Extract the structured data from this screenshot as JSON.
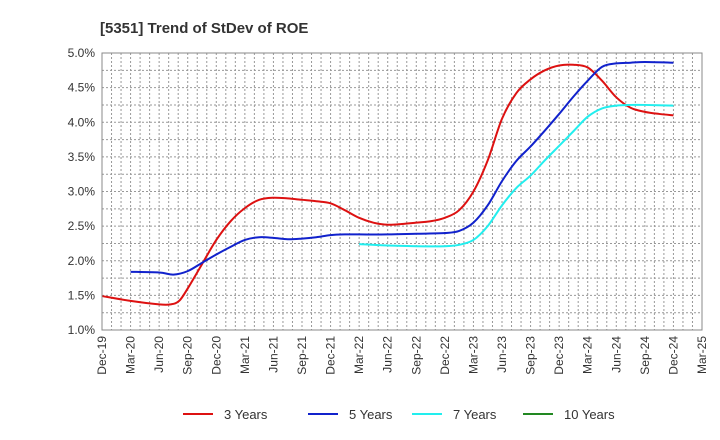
{
  "chart_data": {
    "type": "line",
    "title": "[5351]  Trend of StDev of ROE",
    "xlabel": "",
    "ylabel": "",
    "x_ticks": [
      "Dec-19",
      "Mar-20",
      "Jun-20",
      "Sep-20",
      "Dec-20",
      "Mar-21",
      "Jun-21",
      "Sep-21",
      "Dec-21",
      "Mar-22",
      "Jun-22",
      "Sep-22",
      "Dec-22",
      "Mar-23",
      "Jun-23",
      "Sep-23",
      "Dec-23",
      "Mar-24",
      "Jun-24",
      "Sep-24",
      "Dec-24",
      "Mar-25"
    ],
    "y_ticks": [
      "1.0%",
      "1.5%",
      "2.0%",
      "2.5%",
      "3.0%",
      "3.5%",
      "4.0%",
      "4.5%",
      "5.0%"
    ],
    "ylim": [
      1.0,
      5.0
    ],
    "grid": true,
    "legend_position": "bottom",
    "series": [
      {
        "name": "3 Years",
        "color": "#dd1111",
        "points": [
          [
            0,
            1.49
          ],
          [
            1,
            1.42
          ],
          [
            2,
            1.37
          ],
          [
            2.4,
            1.37
          ],
          [
            2.7,
            1.42
          ],
          [
            3,
            1.6
          ],
          [
            3.5,
            1.95
          ],
          [
            4,
            2.3
          ],
          [
            4.5,
            2.57
          ],
          [
            5,
            2.76
          ],
          [
            5.5,
            2.88
          ],
          [
            6,
            2.91
          ],
          [
            6.5,
            2.9
          ],
          [
            7,
            2.88
          ],
          [
            7.5,
            2.86
          ],
          [
            8,
            2.83
          ],
          [
            8.5,
            2.73
          ],
          [
            9,
            2.62
          ],
          [
            9.5,
            2.55
          ],
          [
            10,
            2.52
          ],
          [
            10.5,
            2.53
          ],
          [
            11,
            2.55
          ],
          [
            11.5,
            2.57
          ],
          [
            12,
            2.62
          ],
          [
            12.5,
            2.73
          ],
          [
            13,
            3.0
          ],
          [
            13.5,
            3.45
          ],
          [
            14,
            4.05
          ],
          [
            14.5,
            4.42
          ],
          [
            15,
            4.62
          ],
          [
            15.5,
            4.75
          ],
          [
            16,
            4.82
          ],
          [
            16.5,
            4.83
          ],
          [
            17,
            4.79
          ],
          [
            17.5,
            4.6
          ],
          [
            18,
            4.36
          ],
          [
            18.5,
            4.21
          ],
          [
            19,
            4.15
          ],
          [
            19.5,
            4.12
          ],
          [
            20,
            4.1
          ]
        ]
      },
      {
        "name": "5 Years",
        "color": "#1122cc",
        "points": [
          [
            1,
            1.84
          ],
          [
            2,
            1.83
          ],
          [
            2.5,
            1.8
          ],
          [
            3,
            1.85
          ],
          [
            3.5,
            1.97
          ],
          [
            4,
            2.09
          ],
          [
            4.5,
            2.2
          ],
          [
            5,
            2.3
          ],
          [
            5.5,
            2.34
          ],
          [
            6,
            2.33
          ],
          [
            6.5,
            2.31
          ],
          [
            7,
            2.32
          ],
          [
            7.5,
            2.34
          ],
          [
            8,
            2.37
          ],
          [
            8.5,
            2.38
          ],
          [
            9,
            2.38
          ],
          [
            10,
            2.38
          ],
          [
            11,
            2.39
          ],
          [
            12,
            2.4
          ],
          [
            12.5,
            2.43
          ],
          [
            13,
            2.55
          ],
          [
            13.5,
            2.8
          ],
          [
            14,
            3.15
          ],
          [
            14.5,
            3.44
          ],
          [
            15,
            3.65
          ],
          [
            15.5,
            3.88
          ],
          [
            16,
            4.12
          ],
          [
            16.5,
            4.37
          ],
          [
            17,
            4.6
          ],
          [
            17.5,
            4.8
          ],
          [
            18,
            4.85
          ],
          [
            18.5,
            4.86
          ],
          [
            19,
            4.87
          ],
          [
            20,
            4.86
          ]
        ]
      },
      {
        "name": "7 Years",
        "color": "#22eeee",
        "points": [
          [
            9,
            2.24
          ],
          [
            10,
            2.22
          ],
          [
            11,
            2.21
          ],
          [
            12,
            2.21
          ],
          [
            12.5,
            2.23
          ],
          [
            13,
            2.3
          ],
          [
            13.5,
            2.5
          ],
          [
            14,
            2.8
          ],
          [
            14.5,
            3.05
          ],
          [
            15,
            3.23
          ],
          [
            15.5,
            3.45
          ],
          [
            16,
            3.66
          ],
          [
            16.5,
            3.87
          ],
          [
            17,
            4.08
          ],
          [
            17.5,
            4.2
          ],
          [
            18,
            4.24
          ],
          [
            18.5,
            4.25
          ],
          [
            19,
            4.25
          ],
          [
            20,
            4.24
          ]
        ]
      },
      {
        "name": "10 Years",
        "color": "#228822",
        "points": []
      }
    ]
  }
}
